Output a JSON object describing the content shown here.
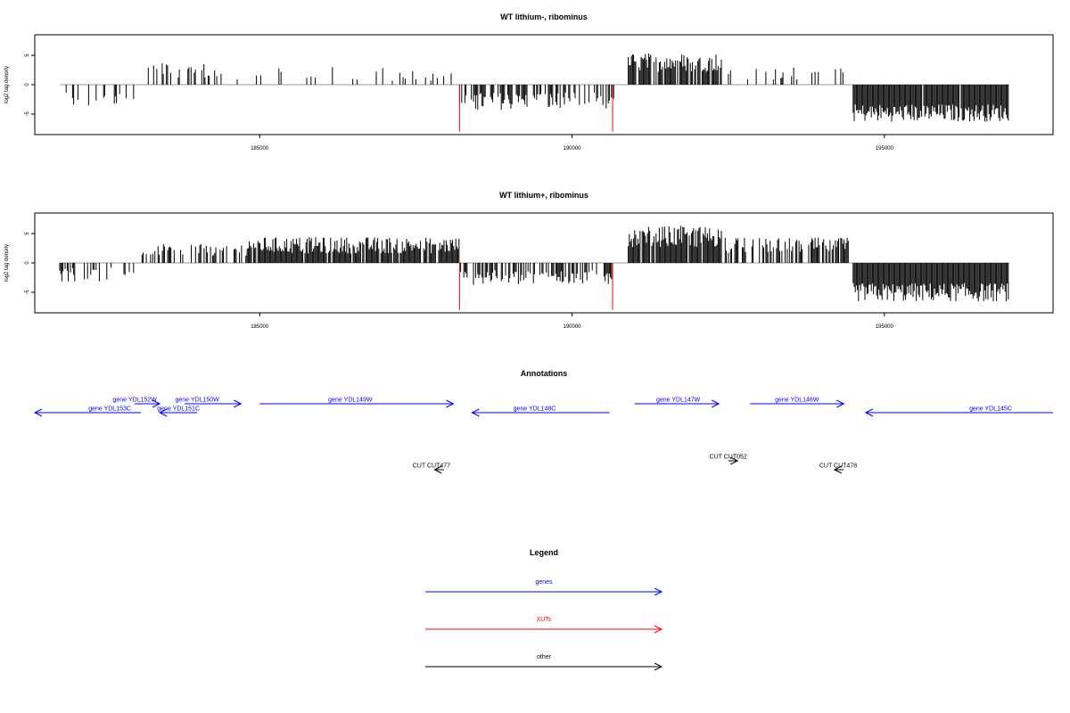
{
  "chart_data": [
    {
      "type": "bar",
      "title": "WT lithium-, ribominus",
      "xlabel": "",
      "ylabel": "log2 tag density",
      "xlim": [
        181400,
        197700
      ],
      "ylim": [
        -8.5,
        8.5
      ],
      "xticks": [
        185000,
        190000,
        195000
      ],
      "yticks": [
        -5,
        0,
        5
      ],
      "regions": [
        {
          "start": 181800,
          "end": 183000,
          "level": -2.5,
          "spread": 1.5,
          "density": 0.25
        },
        {
          "start": 183200,
          "end": 184400,
          "level": 2.5,
          "spread": 1.3,
          "density": 0.35
        },
        {
          "start": 184400,
          "end": 188200,
          "level": 1.8,
          "spread": 1.2,
          "density": 0.1
        },
        {
          "start": 188200,
          "end": 190700,
          "level": -2.8,
          "spread": 1.5,
          "density": 0.5
        },
        {
          "start": 190900,
          "end": 192400,
          "level": 3.8,
          "spread": 1.6,
          "density": 0.8
        },
        {
          "start": 192400,
          "end": 194400,
          "level": 2.0,
          "spread": 1.2,
          "density": 0.18
        },
        {
          "start": 194500,
          "end": 197000,
          "level": -4.8,
          "spread": 1.5,
          "density": 0.95
        }
      ],
      "xut_markers": [
        188200,
        190650
      ],
      "xut_depth": -8
    },
    {
      "type": "bar",
      "title": "WT lithium+, ribominus",
      "xlabel": "",
      "ylabel": "log2 tag density",
      "xlim": [
        181400,
        197700
      ],
      "ylim": [
        -8.5,
        8.5
      ],
      "xticks": [
        185000,
        190000,
        195000
      ],
      "yticks": [
        -5,
        0,
        5
      ],
      "regions": [
        {
          "start": 181800,
          "end": 183000,
          "level": -2.0,
          "spread": 1.2,
          "density": 0.25
        },
        {
          "start": 183100,
          "end": 184800,
          "level": 2.2,
          "spread": 1.0,
          "density": 0.45
        },
        {
          "start": 184800,
          "end": 188200,
          "level": 3.0,
          "spread": 1.4,
          "density": 0.9
        },
        {
          "start": 188200,
          "end": 190700,
          "level": -2.5,
          "spread": 1.3,
          "density": 0.5
        },
        {
          "start": 190900,
          "end": 192400,
          "level": 4.5,
          "spread": 1.8,
          "density": 0.95
        },
        {
          "start": 192400,
          "end": 194500,
          "level": 3.0,
          "spread": 1.3,
          "density": 0.6
        },
        {
          "start": 194500,
          "end": 197000,
          "level": -5.0,
          "spread": 1.6,
          "density": 0.98
        }
      ],
      "xut_markers": [
        188200,
        190650
      ],
      "xut_depth": -8
    }
  ],
  "annotations": {
    "title": "Annotations",
    "genes": [
      {
        "label": "gene YDL153C",
        "start": 181400,
        "end": 183100,
        "direction": "left",
        "row": 1,
        "label_pos": 182600
      },
      {
        "label": "gene YDL152W",
        "start": 183000,
        "end": 183400,
        "direction": "right",
        "row": 0,
        "label_pos": 183000
      },
      {
        "label": "gene YDL151C",
        "start": 183400,
        "end": 184000,
        "direction": "left",
        "row": 1,
        "label_pos": 183700
      },
      {
        "label": "gene YDL150W",
        "start": 183800,
        "end": 184700,
        "direction": "right",
        "row": 0,
        "label_pos": 184000
      },
      {
        "label": "gene YDL149W",
        "start": 185000,
        "end": 188100,
        "direction": "right",
        "row": 0,
        "label_pos": 186450
      },
      {
        "label": "gene YDL148C",
        "start": 188400,
        "end": 190600,
        "direction": "left",
        "row": 1,
        "label_pos": 189400
      },
      {
        "label": "gene YDL147W",
        "start": 191000,
        "end": 192350,
        "direction": "right",
        "row": 0,
        "label_pos": 191700
      },
      {
        "label": "gene YDL146W",
        "start": 192850,
        "end": 194350,
        "direction": "right",
        "row": 0,
        "label_pos": 193600
      },
      {
        "label": "gene YDL145C",
        "start": 194700,
        "end": 197700,
        "direction": "left",
        "row": 1,
        "label_pos": 196700
      }
    ],
    "others": [
      {
        "label": "CUT CUT477",
        "start": 187800,
        "end": 187950,
        "direction": "left",
        "label_pos": 187750
      },
      {
        "label": "CUT CUT052",
        "start": 192500,
        "end": 192650,
        "direction": "right",
        "label_pos": 192500
      },
      {
        "label": "CUT CUT478",
        "start": 194200,
        "end": 194350,
        "direction": "left",
        "label_pos": 194260
      }
    ]
  },
  "legend": {
    "title": "Legend",
    "items": [
      {
        "label": "genes",
        "color": "#0000ff"
      },
      {
        "label": "XUTs",
        "color": "#ff0000"
      },
      {
        "label": "other",
        "color": "#000000"
      }
    ]
  },
  "colors": {
    "bars": "#000000",
    "baseline": "#999999",
    "xut": "#ff0000",
    "gene": "#0000ff",
    "other": "#000000"
  }
}
